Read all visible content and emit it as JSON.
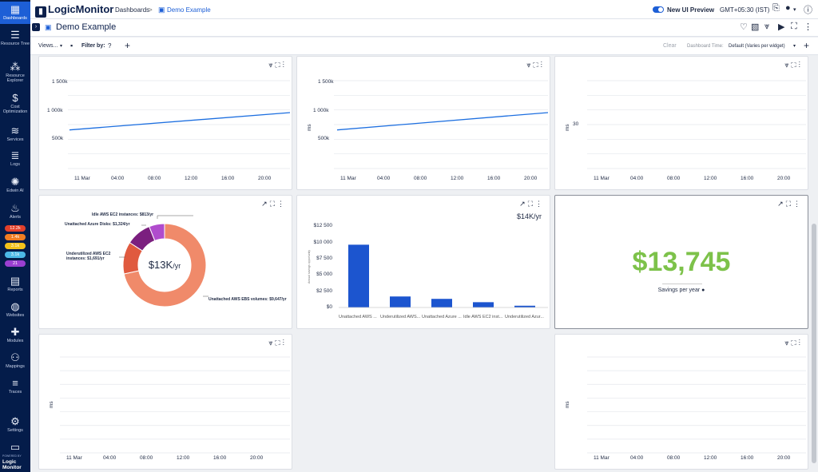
{
  "sidebar": {
    "items": [
      {
        "label": "Dashboards",
        "icon": "dashboard-icon",
        "glyph": "▦"
      },
      {
        "label": "Resource Tree",
        "icon": "resource-tree-icon",
        "glyph": "☰"
      },
      {
        "label": "Resource Explorer",
        "icon": "resource-explorer-icon",
        "glyph": "⁂"
      },
      {
        "label": "Cost Optimization",
        "icon": "dollar-icon",
        "glyph": "$"
      },
      {
        "label": "Services",
        "icon": "layers-icon",
        "glyph": "≋"
      },
      {
        "label": "Logs",
        "icon": "logs-icon",
        "glyph": "≣"
      },
      {
        "label": "Edwin AI",
        "icon": "atom-icon",
        "glyph": "✺"
      },
      {
        "label": "Alerts",
        "icon": "flame-icon",
        "glyph": "♨"
      },
      {
        "label": "Reports",
        "icon": "clipboard-icon",
        "glyph": "▤"
      },
      {
        "label": "Websites",
        "icon": "globe-icon",
        "glyph": "◍"
      },
      {
        "label": "Modules",
        "icon": "puzzle-icon",
        "glyph": "✚"
      },
      {
        "label": "Mappings",
        "icon": "mappings-icon",
        "glyph": "⚇"
      },
      {
        "label": "Traces",
        "icon": "traces-icon",
        "glyph": "≡"
      },
      {
        "label": "Settings",
        "icon": "gear-icon",
        "glyph": "⚙"
      },
      {
        "label": "",
        "icon": "monitor-icon",
        "glyph": "▭"
      }
    ],
    "alerts": [
      {
        "value": "12.2k",
        "color": "#e2402b"
      },
      {
        "value": "1.4k",
        "color": "#f07d22"
      },
      {
        "value": "3.1k",
        "color": "#f3c21b"
      },
      {
        "value": "3.1k",
        "color": "#4cb9e7"
      },
      {
        "value": "21",
        "color": "#9b3fd1"
      }
    ],
    "brand_powered": "POWERED BY",
    "brand_name": "Logic Monitor"
  },
  "topbar": {
    "logo": "LogicMonitor",
    "breadcrumb_1": "Dashboards",
    "breadcrumb_sep": ">",
    "breadcrumb_2": "Demo Example",
    "new_ui_label": "New UI Preview",
    "timezone": "GMT+05:30 (IST)"
  },
  "titlebar": {
    "title": "Demo Example"
  },
  "filterbar": {
    "views_label": "Views...",
    "filter_label": "Filter by:",
    "clear_label": "Clear",
    "time_label": "Dashboard Time:",
    "time_value": "Default (Varies per widget)"
  },
  "widget1": {
    "y_ticks": [
      "1 500k",
      "1 000k",
      "500k"
    ],
    "x_ticks": [
      "11 Mar",
      "04:00",
      "08:00",
      "12:00",
      "16:00",
      "20:00"
    ],
    "ylabel": ""
  },
  "widget2": {
    "y_ticks": [
      "1 500k",
      "1 000k",
      "500k"
    ],
    "x_ticks": [
      "11 Mar",
      "04:00",
      "08:00",
      "12:00",
      "16:00",
      "20:00"
    ],
    "ylabel": "ms"
  },
  "widget3": {
    "y_ticks": [
      "30"
    ],
    "x_ticks": [
      "11 Mar",
      "04:00",
      "08:00",
      "12:00",
      "16:00",
      "20:00"
    ],
    "ylabel": "ms"
  },
  "chart_data": [
    {
      "type": "line",
      "x": [
        "11 Mar 00:00",
        "24:00"
      ],
      "series": [
        {
          "values": [
            770,
            1030
          ]
        }
      ],
      "ylim": [
        0,
        1700
      ],
      "y_unit": "k",
      "grid": true
    },
    {
      "type": "line",
      "x": [
        "11 Mar 00:00",
        "24:00"
      ],
      "series": [
        {
          "values": [
            770,
            1030
          ]
        }
      ],
      "ylim": [
        0,
        1700
      ],
      "y_unit": "k",
      "ylabel": "ms",
      "grid": true
    },
    {
      "type": "line",
      "x": [
        "11 Mar",
        "04:00",
        "08:00",
        "12:00",
        "16:00",
        "20:00"
      ],
      "series": [],
      "ylabel": "ms",
      "grid": true
    },
    {
      "type": "pie",
      "center_label": "$13K",
      "center_suffix": "/yr",
      "slices": [
        {
          "label": "Unattached AWS EBS volumes: $9,647/yr",
          "value": 9647,
          "color": "#f08a6a"
        },
        {
          "label": "Underutilized AWS EC2 instances: $1,691/yr",
          "value": 1691,
          "color": "#e05a3f"
        },
        {
          "label": "Unattached Azure Disks: $1,324/yr",
          "value": 1324,
          "color": "#7b1f7f"
        },
        {
          "label": "Idle AWS EC2 instances: $813/yr",
          "value": 813,
          "color": "#b04ccd"
        }
      ]
    },
    {
      "type": "bar",
      "title": "$14K/yr",
      "ylabel": "Annual savings opportunity",
      "y_ticks": [
        "$12 500",
        "$10 000",
        "$7 500",
        "$5 000",
        "$2 500",
        "$0"
      ],
      "ylim": [
        0,
        13500
      ],
      "categories": [
        "Unattached AWS ...",
        "Underutilized AWS...",
        "Unattached Azure ...",
        "Idle AWS EC2 inst...",
        "Underutilized Azur..."
      ],
      "values": [
        9647,
        1691,
        1324,
        813,
        270
      ],
      "color": "#1c55cf"
    }
  ],
  "widget6": {
    "value": "$13,745",
    "caption": "Savings per year"
  },
  "widget7": {
    "x_ticks": [
      "11 Mar",
      "04:00",
      "08:00",
      "12:00",
      "16:00",
      "20:00"
    ],
    "ylabel": "ms"
  },
  "widget8": {
    "x_ticks": [
      "11 Mar",
      "04:00",
      "08:00",
      "12:00",
      "16:00",
      "20:00"
    ],
    "ylabel": "ms"
  },
  "colors": {
    "accent": "#1d5fd6",
    "sidebar": "#041c4a",
    "savings": "#7dc24a",
    "line": "#1d6fe0"
  }
}
